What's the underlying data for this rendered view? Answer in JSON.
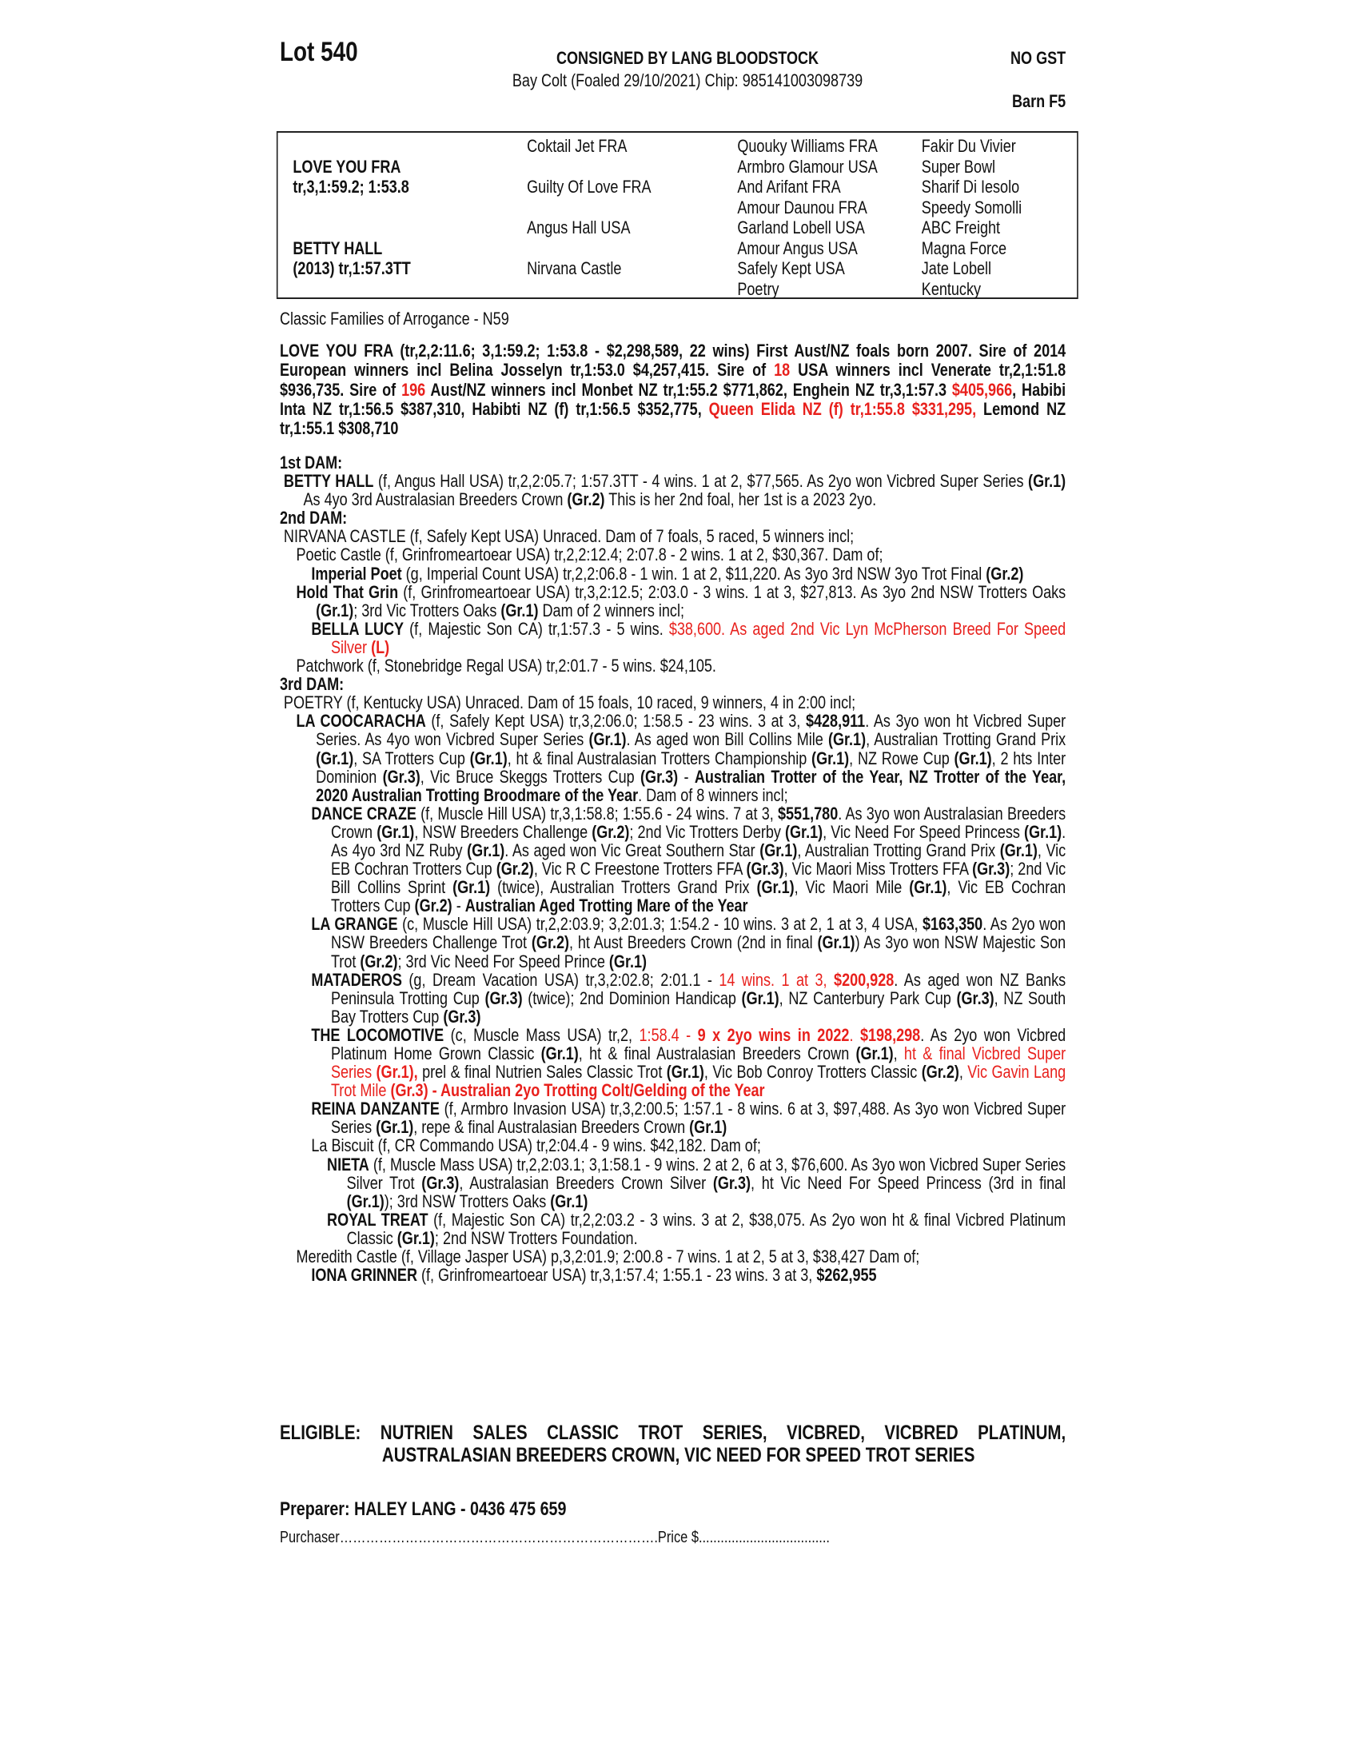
{
  "header": {
    "lot": "Lot 540",
    "consignor": "CONSIGNED BY LANG BLOODSTOCK",
    "description": "Bay Colt (Foaled 29/10/2021) Chip: 985141003098739",
    "gst": "NO GST",
    "barn": "Barn F5"
  },
  "pedigree": {
    "col1": [
      "",
      "LOVE YOU FRA",
      "tr,3,1:59.2; 1:53.8",
      "",
      "",
      "BETTY HALL",
      "(2013) tr,1:57.3TT",
      ""
    ],
    "col2": [
      "Coktail Jet FRA",
      "",
      "Guilty Of Love FRA",
      "",
      "Angus Hall USA",
      "",
      "Nirvana Castle",
      ""
    ],
    "col3": [
      "Quouky Williams FRA",
      "Armbro Glamour USA",
      "And Arifant FRA",
      "Amour Daunou FRA",
      "Garland Lobell USA",
      "Amour Angus USA",
      "Safely Kept USA",
      "Poetry"
    ],
    "col4": [
      "Fakir Du Vivier",
      "Super Bowl",
      "Sharif Di Iesolo",
      "Speedy Somolli",
      "ABC Freight",
      "Magna Force",
      "Jate Lobell",
      "Kentucky"
    ]
  },
  "family": "Classic Families of Arrogance - N59",
  "sire_runs": [
    {
      "t": "LOVE YOU FRA (tr,2,2:11.6; 3,1:59.2; 1:53.8 - $2,298,589, 22 wins) First Aust/NZ foals born 2007. Sire of 2014 European winners incl Belina Josselyn tr,1:53.0 $4,257,415. Sire of ",
      "s": "b"
    },
    {
      "t": "18",
      "s": "rb"
    },
    {
      "t": " USA winners incl Venerate tr,2,1:51.8 $936,735. Sire of ",
      "s": "b"
    },
    {
      "t": "196",
      "s": "rb"
    },
    {
      "t": " Aust/NZ winners incl Monbet NZ tr,1:55.2 $771,862, Enghein NZ tr,3,1:57.3 ",
      "s": "b"
    },
    {
      "t": "$405,966",
      "s": "rb"
    },
    {
      "t": ", Habibi Inta NZ tr,1:56.5 $387,310, Habibti NZ (f) tr,1:56.5 $352,775, ",
      "s": "b"
    },
    {
      "t": "Queen Elida NZ (f) tr,1:55.8 $331,295,",
      "s": "rb"
    },
    {
      "t": " Lemond NZ tr,1:55.1 $308,710",
      "s": "b"
    }
  ],
  "entries": [
    {
      "cls": "hdr",
      "runs": [
        {
          "t": "1st DAM:",
          "s": "b"
        }
      ]
    },
    {
      "cls": "l0",
      "runs": [
        {
          "t": "BETTY HALL",
          "s": "b"
        },
        {
          "t": " (f, Angus Hall USA) tr,2,2:05.7; 1:57.3TT - 4 wins. 1 at 2, $77,565. As 2yo won Vicbred Super Series ",
          "s": ""
        },
        {
          "t": "(Gr.1)",
          "s": "b"
        },
        {
          "t": " As 4yo 3rd Australasian Breeders Crown ",
          "s": ""
        },
        {
          "t": "(Gr.2)",
          "s": "b"
        },
        {
          "t": " This is her 2nd foal, her 1st is a 2023 2yo.",
          "s": ""
        }
      ]
    },
    {
      "cls": "hdr",
      "runs": [
        {
          "t": "2nd DAM:",
          "s": "b"
        }
      ]
    },
    {
      "cls": "l0",
      "runs": [
        {
          "t": "NIRVANA CASTLE (f, Safely Kept USA) Unraced. Dam of 7 foals, 5 raced, 5 winners incl;",
          "s": ""
        }
      ]
    },
    {
      "cls": "l1",
      "runs": [
        {
          "t": "Poetic Castle (f, Grinfromeartoear USA) tr,2,2:12.4; 2:07.8 - 2 wins. 1 at 2, $30,367. Dam of;",
          "s": ""
        }
      ]
    },
    {
      "cls": "l2",
      "runs": [
        {
          "t": "Imperial Poet",
          "s": "b"
        },
        {
          "t": " (g, Imperial Count USA) tr,2,2:06.8 - 1 win. 1 at 2, $11,220. As 3yo 3rd NSW 3yo Trot Final ",
          "s": ""
        },
        {
          "t": "(Gr.2)",
          "s": "b"
        }
      ]
    },
    {
      "cls": "l1",
      "runs": [
        {
          "t": "Hold That Grin",
          "s": "b"
        },
        {
          "t": " (f, Grinfromeartoear USA) tr,3,2:12.5; 2:03.0 - 3 wins. 1 at 3, $27,813. As 3yo 2nd NSW Trotters Oaks ",
          "s": ""
        },
        {
          "t": "(Gr.1)",
          "s": "b"
        },
        {
          "t": "; 3rd Vic Trotters Oaks ",
          "s": ""
        },
        {
          "t": "(Gr.1)",
          "s": "b"
        },
        {
          "t": " Dam of 2 winners incl;",
          "s": ""
        }
      ]
    },
    {
      "cls": "l2",
      "runs": [
        {
          "t": "BELLA LUCY",
          "s": "b"
        },
        {
          "t": " (f, Majestic Son CA) tr,1:57.3 - 5 wins. ",
          "s": ""
        },
        {
          "t": "$38,600. As aged 2nd Vic Lyn McPherson Breed For Speed Silver ",
          "s": "r"
        },
        {
          "t": "(L)",
          "s": "rb"
        }
      ]
    },
    {
      "cls": "l1",
      "runs": [
        {
          "t": "Patchwork (f, Stonebridge Regal USA) tr,2:01.7 - 5 wins. $24,105.",
          "s": ""
        }
      ]
    },
    {
      "cls": "hdr",
      "runs": [
        {
          "t": "3rd DAM:",
          "s": "b"
        }
      ]
    },
    {
      "cls": "l0",
      "runs": [
        {
          "t": "POETRY (f, Kentucky USA) Unraced. Dam of 15 foals, 10 raced, 9 winners, 4 in 2:00 incl;",
          "s": ""
        }
      ]
    },
    {
      "cls": "l1",
      "runs": [
        {
          "t": "LA COOCARACHA",
          "s": "b"
        },
        {
          "t": " (f, Safely Kept USA) tr,3,2:06.0; 1:58.5 - 23 wins. 3 at 3, ",
          "s": ""
        },
        {
          "t": "$428,911",
          "s": "b"
        },
        {
          "t": ". As 3yo won ht Vicbred Super Series. As 4yo won Vicbred Super Series ",
          "s": ""
        },
        {
          "t": "(Gr.1)",
          "s": "b"
        },
        {
          "t": ". As aged won Bill Collins Mile ",
          "s": ""
        },
        {
          "t": "(Gr.1)",
          "s": "b"
        },
        {
          "t": ", Australian Trotting Grand Prix ",
          "s": ""
        },
        {
          "t": "(Gr.1)",
          "s": "b"
        },
        {
          "t": ", SA Trotters Cup ",
          "s": ""
        },
        {
          "t": "(Gr.1)",
          "s": "b"
        },
        {
          "t": ", ht & final Australasian Trotters Championship ",
          "s": ""
        },
        {
          "t": "(Gr.1)",
          "s": "b"
        },
        {
          "t": ", NZ Rowe Cup ",
          "s": ""
        },
        {
          "t": "(Gr.1)",
          "s": "b"
        },
        {
          "t": ", 2 hts Inter Dominion ",
          "s": ""
        },
        {
          "t": "(Gr.3)",
          "s": "b"
        },
        {
          "t": ", Vic Bruce Skeggs Trotters Cup ",
          "s": ""
        },
        {
          "t": "(Gr.3)",
          "s": "b"
        },
        {
          "t": " - ",
          "s": ""
        },
        {
          "t": "Australian Trotter of the Year, NZ Trotter of the Year, 2020 Australian Trotting Broodmare of the Year",
          "s": "b"
        },
        {
          "t": ". Dam of 8 winners incl;",
          "s": ""
        }
      ]
    },
    {
      "cls": "l2",
      "runs": [
        {
          "t": "DANCE CRAZE",
          "s": "b"
        },
        {
          "t": " (f, Muscle Hill USA) tr,3,1:58.8; 1:55.6 - 24 wins. 7 at 3, ",
          "s": ""
        },
        {
          "t": "$551,780",
          "s": "b"
        },
        {
          "t": ". As 3yo won Australasian Breeders Crown ",
          "s": ""
        },
        {
          "t": "(Gr.1)",
          "s": "b"
        },
        {
          "t": ", NSW Breeders Challenge ",
          "s": ""
        },
        {
          "t": "(Gr.2)",
          "s": "b"
        },
        {
          "t": "; 2nd Vic Trotters Derby ",
          "s": ""
        },
        {
          "t": "(Gr.1)",
          "s": "b"
        },
        {
          "t": ", Vic Need For Speed Princess ",
          "s": ""
        },
        {
          "t": "(Gr.1)",
          "s": "b"
        },
        {
          "t": ". As 4yo 3rd NZ Ruby ",
          "s": ""
        },
        {
          "t": "(Gr.1)",
          "s": "b"
        },
        {
          "t": ". As aged won Vic Great Southern Star ",
          "s": ""
        },
        {
          "t": "(Gr.1)",
          "s": "b"
        },
        {
          "t": ", Australian Trotting Grand Prix ",
          "s": ""
        },
        {
          "t": "(Gr.1)",
          "s": "b"
        },
        {
          "t": ", Vic EB Cochran Trotters Cup ",
          "s": ""
        },
        {
          "t": "(Gr.2)",
          "s": "b"
        },
        {
          "t": ", Vic R C Freestone Trotters FFA ",
          "s": ""
        },
        {
          "t": "(Gr.3)",
          "s": "b"
        },
        {
          "t": ", Vic Maori Miss Trotters FFA ",
          "s": ""
        },
        {
          "t": "(Gr.3)",
          "s": "b"
        },
        {
          "t": "; 2nd Vic Bill Collins Sprint ",
          "s": ""
        },
        {
          "t": "(Gr.1)",
          "s": "b"
        },
        {
          "t": " (twice), Australian Trotters Grand Prix ",
          "s": ""
        },
        {
          "t": "(Gr.1)",
          "s": "b"
        },
        {
          "t": ", Vic Maori Mile ",
          "s": ""
        },
        {
          "t": "(Gr.1)",
          "s": "b"
        },
        {
          "t": ", Vic EB Cochran Trotters Cup ",
          "s": ""
        },
        {
          "t": "(Gr.2)",
          "s": "b"
        },
        {
          "t": " - ",
          "s": ""
        },
        {
          "t": "Australian Aged Trotting Mare of the Year",
          "s": "b"
        }
      ]
    },
    {
      "cls": "l2",
      "runs": [
        {
          "t": "LA GRANGE",
          "s": "b"
        },
        {
          "t": " (c, Muscle Hill USA) tr,2,2:03.9; 3,2:01.3; 1:54.2 - 10 wins. 3 at 2, 1 at 3, 4 USA, ",
          "s": ""
        },
        {
          "t": "$163,350",
          "s": "b"
        },
        {
          "t": ". As 2yo won NSW Breeders Challenge Trot ",
          "s": ""
        },
        {
          "t": "(Gr.2)",
          "s": "b"
        },
        {
          "t": ", ht Aust Breeders Crown (2nd in final ",
          "s": ""
        },
        {
          "t": "(Gr.1)",
          "s": "b"
        },
        {
          "t": ") As 3yo won NSW Majestic Son Trot ",
          "s": ""
        },
        {
          "t": "(Gr.2)",
          "s": "b"
        },
        {
          "t": "; 3rd Vic Need For Speed Prince ",
          "s": ""
        },
        {
          "t": "(Gr.1)",
          "s": "b"
        }
      ]
    },
    {
      "cls": "l2",
      "runs": [
        {
          "t": "MATADEROS",
          "s": "b"
        },
        {
          "t": " (g, Dream Vacation USA) tr,3,2:02.8; 2:01.1 - ",
          "s": ""
        },
        {
          "t": "14 wins. 1 at 3, ",
          "s": "r"
        },
        {
          "t": "$200,928",
          "s": "rb"
        },
        {
          "t": ". As aged won NZ Banks Peninsula Trotting Cup ",
          "s": ""
        },
        {
          "t": "(Gr.3)",
          "s": "b"
        },
        {
          "t": " (twice); 2nd Dominion Handicap ",
          "s": ""
        },
        {
          "t": "(Gr.1)",
          "s": "b"
        },
        {
          "t": ", NZ Canterbury Park Cup ",
          "s": ""
        },
        {
          "t": "(Gr.3)",
          "s": "b"
        },
        {
          "t": ", NZ South Bay Trotters Cup ",
          "s": ""
        },
        {
          "t": "(Gr.3)",
          "s": "b"
        }
      ]
    },
    {
      "cls": "l2",
      "runs": [
        {
          "t": "THE LOCOMOTIVE",
          "s": "b"
        },
        {
          "t": " (c, Muscle Mass USA) tr,2, ",
          "s": ""
        },
        {
          "t": "1:58.4 - ",
          "s": "r"
        },
        {
          "t": "9 x 2yo wins in 2022",
          "s": "rb"
        },
        {
          "t": ". ",
          "s": "r"
        },
        {
          "t": "$198,298",
          "s": "rb"
        },
        {
          "t": ". As 2yo won Vicbred Platinum Home Grown Classic ",
          "s": ""
        },
        {
          "t": "(Gr.1)",
          "s": "b"
        },
        {
          "t": ", ht & final Australasian Breeders Crown ",
          "s": ""
        },
        {
          "t": "(Gr.1)",
          "s": "b"
        },
        {
          "t": ", ",
          "s": ""
        },
        {
          "t": "ht & final Vicbred Super Series ",
          "s": "r"
        },
        {
          "t": "(Gr.1),",
          "s": "rb"
        },
        {
          "t": " prel & final Nutrien Sales Classic Trot ",
          "s": ""
        },
        {
          "t": "(Gr.1)",
          "s": "b"
        },
        {
          "t": ", Vic Bob Conroy Trotters Classic ",
          "s": ""
        },
        {
          "t": "(Gr.2)",
          "s": "b"
        },
        {
          "t": ", ",
          "s": ""
        },
        {
          "t": "Vic Gavin Lang Trot Mile ",
          "s": "r"
        },
        {
          "t": "(Gr.3) - Australian 2yo Trotting Colt/Gelding of the Year",
          "s": "rb"
        }
      ]
    },
    {
      "cls": "l2",
      "runs": [
        {
          "t": "REINA DANZANTE",
          "s": "b"
        },
        {
          "t": " (f, Armbro Invasion USA) tr,3,2:00.5; 1:57.1 - 8 wins. 6 at 3, $97,488. As 3yo won Vicbred Super Series ",
          "s": ""
        },
        {
          "t": "(Gr.1)",
          "s": "b"
        },
        {
          "t": ", repe & final Australasian Breeders Crown ",
          "s": ""
        },
        {
          "t": "(Gr.1)",
          "s": "b"
        }
      ]
    },
    {
      "cls": "l2",
      "runs": [
        {
          "t": "La Biscuit (f, CR Commando USA) tr,2:04.4 - 9 wins. $42,182. Dam of;",
          "s": ""
        }
      ]
    },
    {
      "cls": "l3",
      "runs": [
        {
          "t": "NIETA",
          "s": "b"
        },
        {
          "t": " (f, Muscle Mass USA) tr,2,2:03.1; 3,1:58.1 - 9 wins. 2 at 2, 6 at 3, $76,600. As 3yo won Vicbred Super Series Silver Trot ",
          "s": ""
        },
        {
          "t": "(Gr.3)",
          "s": "b"
        },
        {
          "t": ", Australasian Breeders Crown Silver ",
          "s": ""
        },
        {
          "t": "(Gr.3)",
          "s": "b"
        },
        {
          "t": ", ht Vic Need For Speed Princess (3rd in final ",
          "s": ""
        },
        {
          "t": "(Gr.1)",
          "s": "b"
        },
        {
          "t": "); 3rd NSW Trotters Oaks ",
          "s": ""
        },
        {
          "t": "(Gr.1)",
          "s": "b"
        }
      ]
    },
    {
      "cls": "l3",
      "runs": [
        {
          "t": "ROYAL TREAT",
          "s": "b"
        },
        {
          "t": " (f, Majestic Son CA) tr,2,2:03.2 - 3 wins. 3 at 2, $38,075. As 2yo won ht & final Vicbred Platinum Classic ",
          "s": ""
        },
        {
          "t": "(Gr.1)",
          "s": "b"
        },
        {
          "t": "; 2nd NSW Trotters Foundation.",
          "s": ""
        }
      ]
    },
    {
      "cls": "l1",
      "runs": [
        {
          "t": "Meredith Castle (f, Village Jasper USA) p,3,2:01.9; 2:00.8 - 7 wins. 1 at 2, 5 at 3, $38,427 Dam of;",
          "s": ""
        }
      ]
    },
    {
      "cls": "l2",
      "runs": [
        {
          "t": "IONA GRINNER",
          "s": "b"
        },
        {
          "t": " (f, Grinfromeartoear USA) tr,3,1:57.4; 1:55.1 - 23 wins. 3 at 3, ",
          "s": ""
        },
        {
          "t": "$262,955",
          "s": "b"
        }
      ]
    }
  ],
  "eligible": "ELIGIBLE: NUTRIEN SALES CLASSIC TROT SERIES, VICBRED, VICBRED PLATINUM, AUSTRALASIAN BREEDERS CROWN, VIC NEED FOR SPEED TROT SERIES",
  "preparer": "Preparer: HALEY LANG - 0436 475 659",
  "purchaser": "Purchaser……………………………………………………………….Price $....................................",
  "colors": {
    "highlight": "#e8201c",
    "text": "#111111"
  }
}
